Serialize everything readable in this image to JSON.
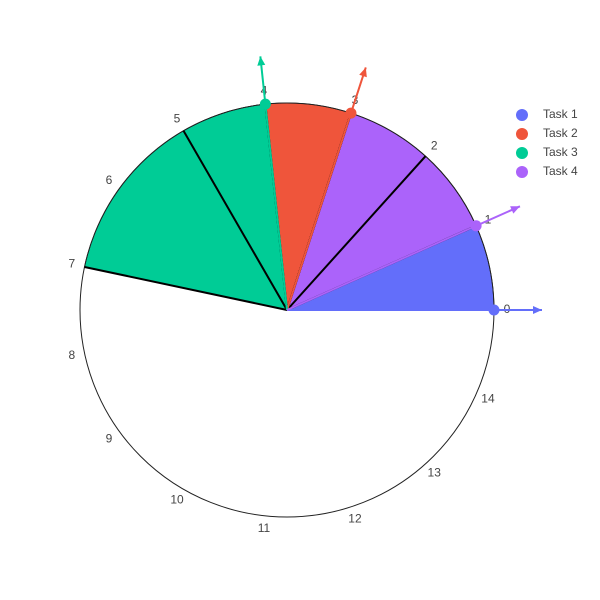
{
  "chart_data": {
    "type": "polar-bar",
    "title": "",
    "angular_axis": {
      "range": [
        0,
        15
      ],
      "direction": "counterclockwise",
      "rotation_deg": 0,
      "ticks": [
        "0",
        "1",
        "2",
        "3",
        "4",
        "5",
        "6",
        "7",
        "8",
        "9",
        "10",
        "11",
        "12",
        "13",
        "14"
      ]
    },
    "radial_axis": {
      "range": [
        0,
        1
      ],
      "visible": false
    },
    "legend": {
      "position": "top-right"
    },
    "series": [
      {
        "name": "Task 1",
        "color": "#636efa",
        "start": 0,
        "end": 2,
        "marker_at": 0,
        "arrow_at": 0
      },
      {
        "name": "Task 2",
        "color": "#ef553b",
        "start": 3,
        "end": 5,
        "marker_at": 3,
        "arrow_at": 3
      },
      {
        "name": "Task 3",
        "color": "#00cc96",
        "start": 4,
        "end": 7,
        "marker_at": 4,
        "arrow_at": 4
      },
      {
        "name": "Task 4",
        "color": "#ab63fa",
        "start": 1,
        "end": 3,
        "marker_at": 1,
        "arrow_at": 1
      }
    ]
  }
}
